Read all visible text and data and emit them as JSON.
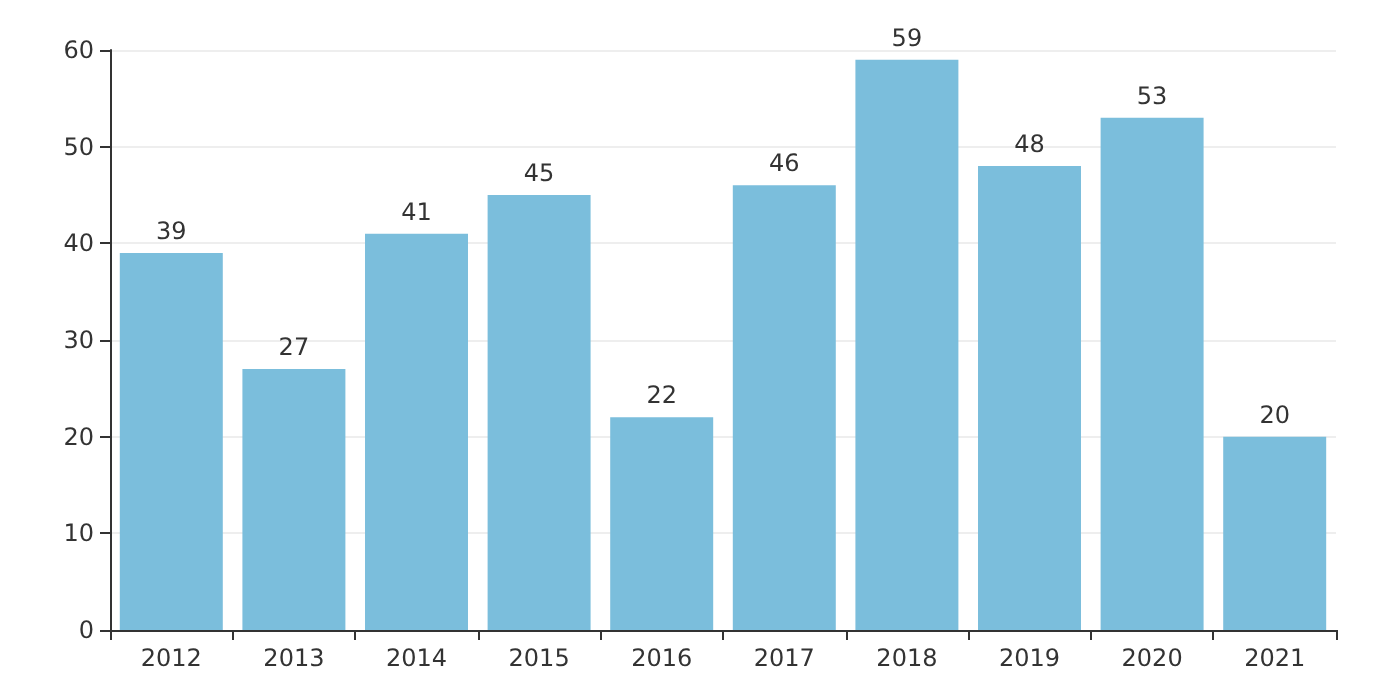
{
  "chart_data": {
    "type": "bar",
    "categories": [
      "2012",
      "2013",
      "2014",
      "2015",
      "2016",
      "2017",
      "2018",
      "2019",
      "2020",
      "2021"
    ],
    "values": [
      39,
      27,
      41,
      45,
      22,
      46,
      59,
      48,
      53,
      20
    ],
    "color": "#7bbedc",
    "ylim": [
      0,
      60
    ],
    "yticks": [
      0,
      10,
      20,
      30,
      40,
      50,
      60
    ],
    "grid": "y",
    "data_labels": true
  }
}
